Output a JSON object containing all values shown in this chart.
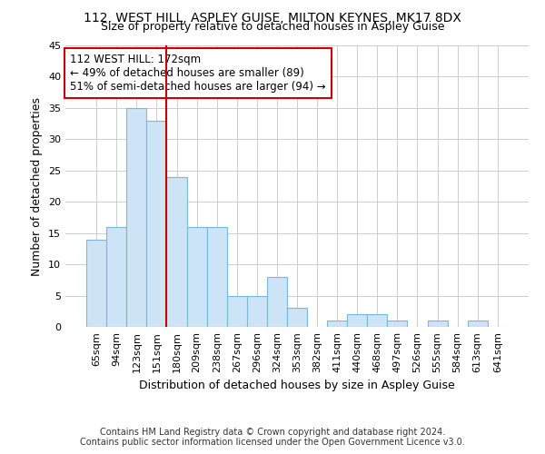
{
  "title1": "112, WEST HILL, ASPLEY GUISE, MILTON KEYNES, MK17 8DX",
  "title2": "Size of property relative to detached houses in Aspley Guise",
  "xlabel": "Distribution of detached houses by size in Aspley Guise",
  "ylabel": "Number of detached properties",
  "categories": [
    "65sqm",
    "94sqm",
    "123sqm",
    "151sqm",
    "180sqm",
    "209sqm",
    "238sqm",
    "267sqm",
    "296sqm",
    "324sqm",
    "353sqm",
    "382sqm",
    "411sqm",
    "440sqm",
    "468sqm",
    "497sqm",
    "526sqm",
    "555sqm",
    "584sqm",
    "613sqm",
    "641sqm"
  ],
  "values": [
    14,
    16,
    35,
    33,
    24,
    16,
    16,
    5,
    5,
    8,
    3,
    0,
    1,
    2,
    2,
    1,
    0,
    1,
    0,
    1,
    0
  ],
  "bar_color": "#cce4f5",
  "bar_edge_color": "#7ab8d9",
  "red_line_color": "#cc0000",
  "annotation_line1": "112 WEST HILL: 172sqm",
  "annotation_line2": "← 49% of detached houses are smaller (89)",
  "annotation_line3": "51% of semi-detached houses are larger (94) →",
  "annotation_box_color": "#ffffff",
  "annotation_box_edge": "#cc0000",
  "red_line_bin": 4,
  "ylim": [
    0,
    45
  ],
  "yticks": [
    0,
    5,
    10,
    15,
    20,
    25,
    30,
    35,
    40,
    45
  ],
  "footer1": "Contains HM Land Registry data © Crown copyright and database right 2024.",
  "footer2": "Contains public sector information licensed under the Open Government Licence v3.0.",
  "bg_color": "#ffffff",
  "grid_color": "#cccccc",
  "title_fontsize": 10,
  "subtitle_fontsize": 9,
  "axis_label_fontsize": 9,
  "tick_fontsize": 8,
  "annotation_fontsize": 8.5,
  "footer_fontsize": 7
}
